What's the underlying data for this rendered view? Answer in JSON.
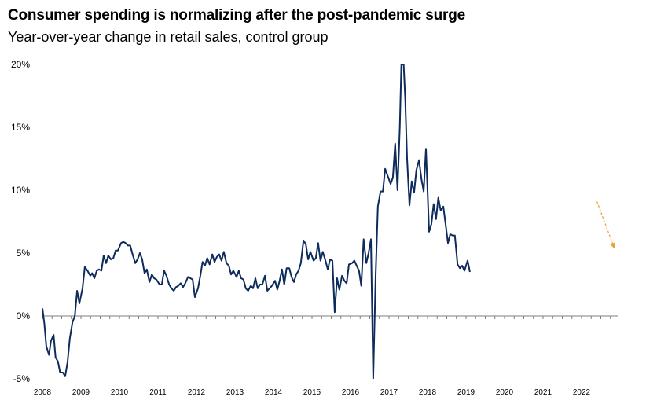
{
  "title": "Consumer spending is normalizing after the post-pandemic surge",
  "subtitle": "Year-over-year change in retail sales, control group",
  "colors": {
    "series": "#0d2c5c",
    "arrow": "#e8a23a",
    "axis": "#7f7f7f"
  },
  "chart_data": {
    "type": "line",
    "title": "Consumer spending is normalizing after the post-pandemic surge",
    "subtitle": "Year-over-year change in retail sales, control group",
    "xlabel": "",
    "ylabel": "",
    "ylim": [
      -5,
      20
    ],
    "xlim": [
      2008,
      2023
    ],
    "grid": false,
    "legend": "none",
    "yticks": [
      {
        "value": 20,
        "label": "20%"
      },
      {
        "value": 15,
        "label": "15%"
      },
      {
        "value": 10,
        "label": "10%"
      },
      {
        "value": 5,
        "label": "5%"
      },
      {
        "value": 0,
        "label": "0%"
      },
      {
        "value": -5,
        "label": "-5%"
      }
    ],
    "xticks": [
      {
        "value": 2008,
        "label": "2008"
      },
      {
        "value": 2009,
        "label": "2009"
      },
      {
        "value": 2010,
        "label": "2010"
      },
      {
        "value": 2011,
        "label": "2011"
      },
      {
        "value": 2012,
        "label": "2012"
      },
      {
        "value": 2013,
        "label": "2013"
      },
      {
        "value": 2014,
        "label": "2014"
      },
      {
        "value": 2015,
        "label": "2015"
      },
      {
        "value": 2016,
        "label": "2016"
      },
      {
        "value": 2017,
        "label": "2017"
      },
      {
        "value": 2018,
        "label": "2018"
      },
      {
        "value": 2019,
        "label": "2019"
      },
      {
        "value": 2020,
        "label": "2020"
      },
      {
        "value": 2021,
        "label": "2021"
      },
      {
        "value": 2022,
        "label": "2022"
      }
    ],
    "annotation": {
      "type": "dashed-arrow",
      "from": [
        2022.4,
        9.1
      ],
      "to": [
        2022.85,
        5.4
      ]
    },
    "series": [
      {
        "name": "",
        "points": [
          [
            2008.0,
            0.6
          ],
          [
            2008.05,
            -0.6
          ],
          [
            2008.1,
            -2.4
          ],
          [
            2008.17,
            -3.1
          ],
          [
            2008.22,
            -2.0
          ],
          [
            2008.29,
            -1.5
          ],
          [
            2008.34,
            -3.3
          ],
          [
            2008.4,
            -3.6
          ],
          [
            2008.46,
            -4.5
          ],
          [
            2008.53,
            -4.5
          ],
          [
            2008.59,
            -4.8
          ],
          [
            2008.65,
            -3.7
          ],
          [
            2008.71,
            -1.8
          ],
          [
            2008.78,
            -0.5
          ],
          [
            2008.84,
            0.0
          ],
          [
            2008.9,
            2.0
          ],
          [
            2008.96,
            1.0
          ],
          [
            2009.04,
            2.2
          ],
          [
            2009.1,
            3.9
          ],
          [
            2009.17,
            3.6
          ],
          [
            2009.24,
            3.2
          ],
          [
            2009.29,
            3.4
          ],
          [
            2009.35,
            3.0
          ],
          [
            2009.41,
            3.6
          ],
          [
            2009.47,
            3.7
          ],
          [
            2009.53,
            3.6
          ],
          [
            2009.59,
            4.8
          ],
          [
            2009.65,
            4.2
          ],
          [
            2009.71,
            4.8
          ],
          [
            2009.78,
            4.5
          ],
          [
            2009.84,
            4.6
          ],
          [
            2009.9,
            5.2
          ],
          [
            2009.96,
            5.2
          ],
          [
            2010.04,
            5.8
          ],
          [
            2010.1,
            5.9
          ],
          [
            2010.16,
            5.8
          ],
          [
            2010.22,
            5.6
          ],
          [
            2010.28,
            5.6
          ],
          [
            2010.34,
            4.9
          ],
          [
            2010.41,
            4.2
          ],
          [
            2010.47,
            4.5
          ],
          [
            2010.53,
            5.0
          ],
          [
            2010.59,
            4.5
          ],
          [
            2010.65,
            3.4
          ],
          [
            2010.71,
            3.7
          ],
          [
            2010.78,
            2.7
          ],
          [
            2010.84,
            3.3
          ],
          [
            2010.9,
            3.0
          ],
          [
            2010.96,
            2.9
          ],
          [
            2011.04,
            2.5
          ],
          [
            2011.1,
            2.5
          ],
          [
            2011.16,
            3.6
          ],
          [
            2011.22,
            3.2
          ],
          [
            2011.29,
            2.5
          ],
          [
            2011.35,
            2.2
          ],
          [
            2011.41,
            2.0
          ],
          [
            2011.47,
            2.3
          ],
          [
            2011.53,
            2.4
          ],
          [
            2011.59,
            2.6
          ],
          [
            2011.65,
            2.3
          ],
          [
            2011.71,
            2.6
          ],
          [
            2011.78,
            3.1
          ],
          [
            2011.84,
            3.0
          ],
          [
            2011.9,
            2.9
          ],
          [
            2011.96,
            1.5
          ],
          [
            2012.04,
            2.2
          ],
          [
            2012.1,
            3.2
          ],
          [
            2012.16,
            4.3
          ],
          [
            2012.22,
            4.0
          ],
          [
            2012.28,
            4.6
          ],
          [
            2012.34,
            4.1
          ],
          [
            2012.41,
            4.9
          ],
          [
            2012.47,
            4.3
          ],
          [
            2012.53,
            4.7
          ],
          [
            2012.59,
            4.9
          ],
          [
            2012.65,
            4.4
          ],
          [
            2012.71,
            5.1
          ],
          [
            2012.78,
            4.2
          ],
          [
            2012.84,
            4.0
          ],
          [
            2012.9,
            3.3
          ],
          [
            2012.96,
            3.6
          ],
          [
            2013.04,
            3.1
          ],
          [
            2013.1,
            3.6
          ],
          [
            2013.16,
            3.0
          ],
          [
            2013.22,
            2.9
          ],
          [
            2013.28,
            2.2
          ],
          [
            2013.34,
            2.0
          ],
          [
            2013.41,
            2.4
          ],
          [
            2013.47,
            2.2
          ],
          [
            2013.53,
            3.0
          ],
          [
            2013.59,
            2.2
          ],
          [
            2013.65,
            2.5
          ],
          [
            2013.71,
            2.5
          ],
          [
            2013.78,
            3.2
          ],
          [
            2013.84,
            2.0
          ],
          [
            2013.9,
            2.2
          ],
          [
            2013.96,
            2.4
          ],
          [
            2014.04,
            2.8
          ],
          [
            2014.1,
            2.1
          ],
          [
            2014.16,
            2.8
          ],
          [
            2014.22,
            3.7
          ],
          [
            2014.28,
            2.5
          ],
          [
            2014.34,
            3.8
          ],
          [
            2014.41,
            3.8
          ],
          [
            2014.47,
            3.1
          ],
          [
            2014.53,
            2.7
          ],
          [
            2014.59,
            3.3
          ],
          [
            2014.65,
            3.6
          ],
          [
            2014.71,
            4.2
          ],
          [
            2014.78,
            6.0
          ],
          [
            2014.84,
            5.7
          ],
          [
            2014.9,
            4.5
          ],
          [
            2014.96,
            5.1
          ],
          [
            2015.04,
            4.4
          ],
          [
            2015.1,
            4.6
          ],
          [
            2015.16,
            5.8
          ],
          [
            2015.22,
            4.4
          ],
          [
            2015.28,
            5.1
          ],
          [
            2015.34,
            4.5
          ],
          [
            2015.41,
            3.7
          ],
          [
            2015.47,
            4.5
          ],
          [
            2015.53,
            4.4
          ],
          [
            2015.59,
            0.3
          ],
          [
            2015.65,
            3.0
          ],
          [
            2015.71,
            2.1
          ],
          [
            2015.78,
            3.2
          ],
          [
            2015.84,
            2.8
          ],
          [
            2015.9,
            2.6
          ],
          [
            2015.96,
            4.1
          ],
          [
            2016.04,
            4.2
          ],
          [
            2016.1,
            4.4
          ],
          [
            2016.16,
            4.0
          ],
          [
            2016.22,
            3.6
          ],
          [
            2016.28,
            2.4
          ],
          [
            2016.34,
            6.1
          ],
          [
            2016.41,
            4.2
          ],
          [
            2016.47,
            5.0
          ],
          [
            2016.53,
            6.1
          ],
          [
            2016.59,
            -5.0
          ],
          [
            2016.65,
            3.0
          ],
          [
            2016.71,
            8.7
          ],
          [
            2016.78,
            9.9
          ],
          [
            2016.84,
            9.9
          ],
          [
            2016.9,
            11.7
          ],
          [
            2016.96,
            11.2
          ],
          [
            2017.04,
            10.5
          ],
          [
            2017.1,
            11.0
          ],
          [
            2017.16,
            13.7
          ],
          [
            2017.22,
            10.0
          ],
          [
            2017.28,
            15.0
          ],
          [
            2017.32,
            20.0
          ],
          [
            2017.38,
            20.0
          ],
          [
            2017.42,
            17.3
          ],
          [
            2017.47,
            12.5
          ],
          [
            2017.53,
            8.8
          ],
          [
            2017.59,
            10.7
          ],
          [
            2017.65,
            9.8
          ],
          [
            2017.71,
            11.6
          ],
          [
            2017.78,
            12.4
          ],
          [
            2017.84,
            10.9
          ],
          [
            2017.9,
            9.9
          ],
          [
            2017.96,
            13.3
          ],
          [
            2018.04,
            6.7
          ],
          [
            2018.1,
            7.3
          ],
          [
            2018.16,
            8.9
          ],
          [
            2018.22,
            7.7
          ],
          [
            2018.28,
            9.4
          ],
          [
            2018.34,
            8.4
          ],
          [
            2018.41,
            8.7
          ],
          [
            2018.47,
            7.3
          ],
          [
            2018.53,
            5.8
          ],
          [
            2018.59,
            6.5
          ],
          [
            2018.65,
            6.4
          ],
          [
            2018.71,
            6.4
          ],
          [
            2018.78,
            4.1
          ],
          [
            2018.84,
            3.8
          ],
          [
            2018.9,
            4.0
          ],
          [
            2018.96,
            3.6
          ],
          [
            2019.04,
            4.4
          ],
          [
            2019.1,
            3.5
          ]
        ]
      }
    ]
  }
}
